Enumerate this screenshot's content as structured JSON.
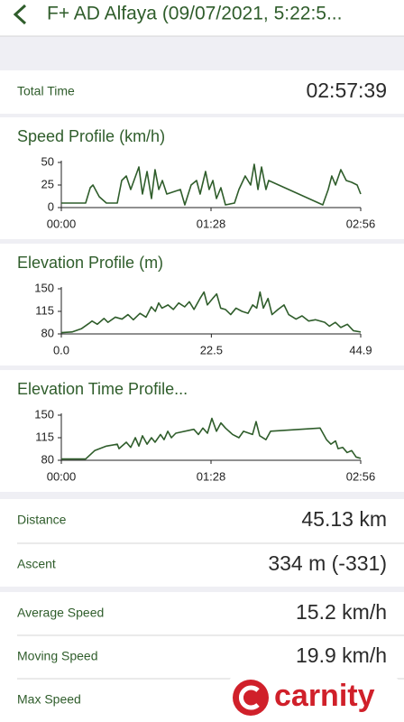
{
  "header": {
    "title": "F+ AD Alfaya (09/07/2021, 5:22:5..."
  },
  "total_time": {
    "label": "Total Time",
    "value": "02:57:39"
  },
  "chart_data": [
    {
      "type": "line",
      "title": "Speed Profile (km/h)",
      "color": "#2f5d2b",
      "x": [
        0,
        14.3,
        17.0,
        18.6,
        22.3,
        26.5,
        32.9,
        35.5,
        38.2,
        40.8,
        45.6,
        47.7,
        50.4,
        53.0,
        55.1,
        57.3,
        59.4,
        62.0,
        70.0,
        72.6,
        76.3,
        79.5,
        81.6,
        84.8,
        86.9,
        89.1,
        91.2,
        93.8,
        96.5,
        101.8,
        104.4,
        108.1,
        111.3,
        113.4,
        115.6,
        117.7,
        120.3,
        121.9,
        153.7,
        156.9,
        159.0,
        161.2,
        164.3,
        167.5,
        170.7,
        173.9,
        176.0
      ],
      "values": [
        5,
        5,
        22,
        25,
        12,
        5,
        5,
        30,
        35,
        20,
        45,
        15,
        40,
        10,
        42,
        20,
        30,
        15,
        20,
        3,
        25,
        30,
        15,
        40,
        20,
        30,
        10,
        22,
        3,
        5,
        20,
        35,
        25,
        48,
        20,
        45,
        20,
        30,
        3,
        20,
        35,
        25,
        42,
        30,
        28,
        25,
        15
      ],
      "xlim": [
        0,
        176
      ],
      "ylim": [
        0,
        50
      ],
      "yticks": [
        0,
        25,
        50
      ],
      "xticks": [
        {
          "value": 0,
          "label": "00:00"
        },
        {
          "value": 88,
          "label": "01:28"
        },
        {
          "value": 176,
          "label": "02:56"
        }
      ]
    },
    {
      "type": "line",
      "title": "Elevation Profile (m)",
      "color": "#2f5d2b",
      "x": [
        0,
        1.6,
        3.0,
        4.1,
        4.6,
        5.4,
        6.4,
        7.0,
        8.1,
        9.1,
        10.0,
        10.8,
        11.8,
        12.7,
        13.5,
        14.1,
        14.6,
        15.1,
        16.0,
        16.8,
        17.6,
        18.5,
        19.2,
        19.9,
        20.8,
        21.4,
        21.9,
        22.7,
        23.3,
        23.9,
        24.6,
        25.4,
        26.2,
        27.1,
        28.0,
        28.7,
        29.3,
        29.8,
        30.3,
        31.0,
        31.6,
        32.5,
        33.4,
        34.1,
        35.2,
        36.1,
        37.1,
        38.1,
        39.5,
        40.2,
        41.1,
        41.9,
        42.9,
        43.8,
        44.9
      ],
      "values": [
        82,
        83,
        88,
        96,
        100,
        95,
        104,
        98,
        106,
        103,
        110,
        102,
        112,
        106,
        122,
        115,
        128,
        120,
        125,
        118,
        128,
        122,
        130,
        118,
        135,
        145,
        125,
        135,
        142,
        120,
        118,
        110,
        120,
        115,
        112,
        125,
        120,
        145,
        120,
        135,
        110,
        118,
        125,
        110,
        103,
        108,
        100,
        102,
        98,
        92,
        98,
        90,
        95,
        85,
        83
      ],
      "xlim": [
        0,
        44.9
      ],
      "ylim": [
        80,
        150
      ],
      "yticks": [
        80,
        115,
        150
      ],
      "xticks": [
        {
          "value": 0,
          "label": "0.0"
        },
        22.5,
        44.9
      ]
    },
    {
      "type": "line",
      "title": "Elevation Time Profile...",
      "color": "#2f5d2b",
      "x": [
        0,
        14.3,
        19.6,
        26.5,
        32.9,
        33.9,
        38.2,
        40.8,
        43.5,
        45.6,
        47.7,
        50.4,
        53.0,
        55.1,
        58.3,
        60.4,
        62.6,
        64.7,
        67.3,
        77.9,
        80.6,
        83.2,
        85.9,
        88.5,
        91.2,
        93.8,
        96.5,
        100.7,
        104.4,
        107.1,
        112.4,
        114.5,
        116.6,
        120.3,
        123.0,
        152.1,
        155.9,
        158.5,
        161.2,
        162.7,
        165.4,
        168.0,
        170.7,
        173.3,
        176.0
      ],
      "values": [
        82,
        82,
        95,
        102,
        105,
        98,
        108,
        100,
        115,
        102,
        118,
        105,
        115,
        108,
        120,
        112,
        125,
        115,
        122,
        128,
        120,
        130,
        122,
        145,
        125,
        138,
        130,
        120,
        115,
        125,
        120,
        140,
        118,
        112,
        125,
        130,
        112,
        105,
        110,
        98,
        100,
        92,
        95,
        85,
        83
      ],
      "xlim": [
        0,
        176
      ],
      "ylim": [
        80,
        150
      ],
      "yticks": [
        80,
        115,
        150
      ],
      "xticks": [
        {
          "value": 0,
          "label": "00:00"
        },
        {
          "value": 88,
          "label": "01:28"
        },
        {
          "value": 176,
          "label": "02:56"
        }
      ]
    }
  ],
  "distance": {
    "label": "Distance",
    "value": "45.13 km"
  },
  "ascent": {
    "label": "Ascent",
    "value": "334 m (-331)"
  },
  "average_speed": {
    "label": "Average Speed",
    "value": "15.2 km/h"
  },
  "moving_speed": {
    "label": "Moving Speed",
    "value": "19.9 km/h"
  },
  "max_speed": {
    "label": "Max Speed"
  },
  "logo": {
    "text": "carnity"
  }
}
